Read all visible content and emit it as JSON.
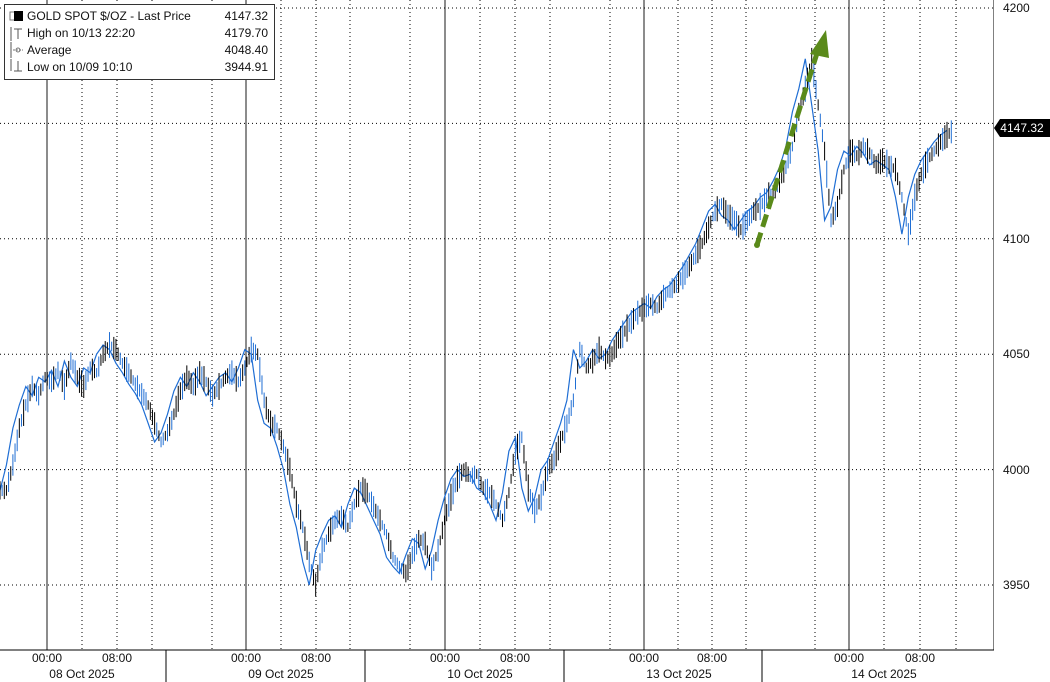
{
  "legend": {
    "title": "GOLD SPOT $/OZ - Last Price",
    "last_value": "4147.32",
    "rows": [
      {
        "label": "High on 10/13 22:20",
        "value": "4179.70"
      },
      {
        "label": "Average",
        "value": "4048.40"
      },
      {
        "label": "Low on 10/09 10:10",
        "value": "3944.91"
      }
    ]
  },
  "last_price_tag": "4147.32",
  "colors": {
    "up_bar": "#000000",
    "down_bar": "#1f6ed4",
    "arrow": "#5a8a1a",
    "tag_bg": "#000000"
  },
  "chart_data": {
    "type": "line",
    "title": "GOLD SPOT $/OZ - Last Price",
    "ylim": [
      3935,
      4200
    ],
    "yticks": [
      3950,
      4000,
      4050,
      4100,
      4200
    ],
    "ytick_labels": [
      "3950",
      "4000",
      "4050",
      "4100",
      "4200"
    ],
    "xtick_labels": [
      {
        "time": "00:00",
        "date": "08 Oct 2025"
      },
      {
        "time": "08:00"
      },
      {
        "time": "00:00",
        "date": "09 Oct 2025"
      },
      {
        "time": "08:00"
      },
      {
        "time": "00:00",
        "date": "10 Oct 2025"
      },
      {
        "time": "08:00"
      },
      {
        "time": "00:00",
        "date": "13 Oct 2025"
      },
      {
        "time": "08:00"
      },
      {
        "time": "00:00",
        "date": "14 Oct 2025"
      },
      {
        "time": "08:00"
      }
    ],
    "grid": true,
    "series": [
      {
        "name": "GOLD SPOT $/OZ",
        "values": [
          3991,
          4002,
          4018,
          4028,
          4036,
          4032,
          4040,
          4038,
          4043,
          4036,
          4047,
          4040,
          4036,
          4044,
          4042,
          4050,
          4054,
          4052,
          4046,
          4042,
          4037,
          4033,
          4028,
          4020,
          4012,
          4016,
          4024,
          4034,
          4040,
          4036,
          4042,
          4038,
          4032,
          4036,
          4040,
          4042,
          4038,
          4044,
          4052,
          4050,
          4030,
          4020,
          4018,
          4010,
          4000,
          3985,
          3975,
          3960,
          3950,
          3965,
          3972,
          3978,
          3980,
          3975,
          3985,
          3992,
          3990,
          3984,
          3978,
          3972,
          3962,
          3958,
          3955,
          3963,
          3970,
          3968,
          3957,
          3965,
          3978,
          3988,
          3996,
          4000,
          3997,
          3998,
          3992,
          3990,
          3985,
          3978,
          3990,
          4008,
          4014,
          3992,
          3982,
          3988,
          4000,
          4004,
          4012,
          4020,
          4030,
          4052,
          4044,
          4047,
          4052,
          4048,
          4050,
          4056,
          4060,
          4064,
          4068,
          4070,
          4072,
          4070,
          4075,
          4078,
          4080,
          4084,
          4088,
          4093,
          4098,
          4105,
          4112,
          4115,
          4110,
          4108,
          4104,
          4108,
          4112,
          4114,
          4118,
          4120,
          4125,
          4131,
          4140,
          4155,
          4165,
          4178,
          4158,
          4138,
          4108,
          4114,
          4130,
          4138,
          4136,
          4140,
          4137,
          4132,
          4134,
          4132,
          4130,
          4118,
          4102,
          4118,
          4128,
          4134,
          4138,
          4142,
          4145,
          4147
        ]
      }
    ],
    "annotations": [
      {
        "type": "arrow",
        "from": {
          "x": "13 Oct 2025 ~14:30",
          "y": 4098
        },
        "to": {
          "x": "13 Oct 2025 ~23:00",
          "y": 4185
        }
      }
    ]
  }
}
